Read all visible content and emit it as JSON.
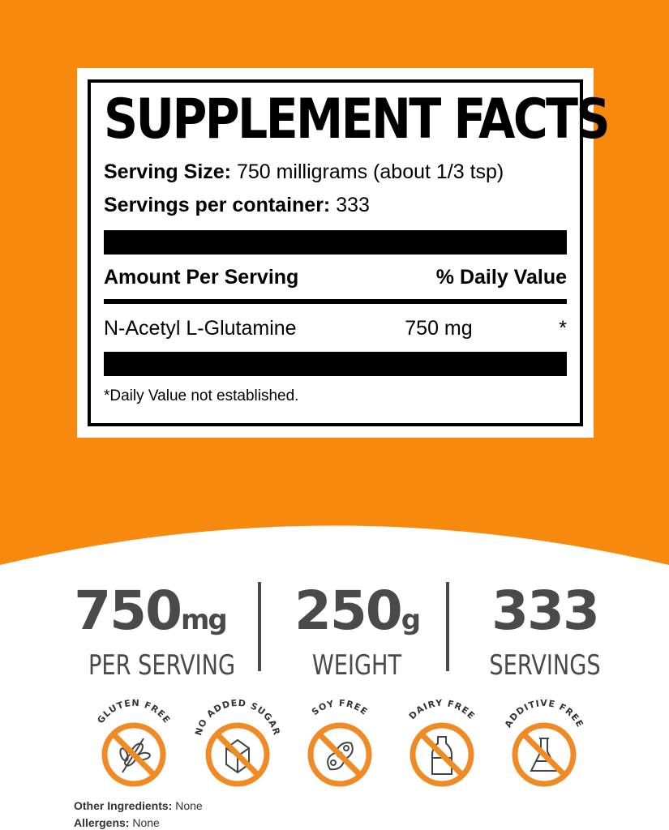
{
  "colors": {
    "orange": "#f7890f",
    "icon_orange": "#f08a24",
    "text_gray": "#4a4a4a"
  },
  "label": {
    "title": "SUPPLEMENT FACTS",
    "serving_size_label": "Serving Size:",
    "serving_size_value": "750 milligrams (about 1/3 tsp)",
    "servings_label": "Servings per container:",
    "servings_value": "333",
    "amount_header": "Amount Per Serving",
    "dv_header": "% Daily Value",
    "ingredients": [
      {
        "name": "N-Acetyl L-Glutamine",
        "amount": "750 mg",
        "dv": "*"
      }
    ],
    "footnote": "*Daily Value not established."
  },
  "stats": [
    {
      "value": "750",
      "unit": "mg",
      "label": "PER SERVING"
    },
    {
      "value": "250",
      "unit": "g",
      "label": "WEIGHT"
    },
    {
      "value": "333",
      "unit": "",
      "label": "SERVINGS"
    }
  ],
  "badges": [
    {
      "text": "GLUTEN FREE",
      "icon": "wheat-icon"
    },
    {
      "text": "NO ADDED SUGAR",
      "icon": "sugar-cube-icon"
    },
    {
      "text": "SOY FREE",
      "icon": "soybean-icon"
    },
    {
      "text": "DAIRY FREE",
      "icon": "milk-bottle-icon"
    },
    {
      "text": "ADDITIVE FREE",
      "icon": "flask-icon"
    }
  ],
  "other_ingredients": {
    "label": "Other Ingredients:",
    "value": "None"
  },
  "allergens": {
    "label": "Allergens:",
    "value": "None"
  }
}
